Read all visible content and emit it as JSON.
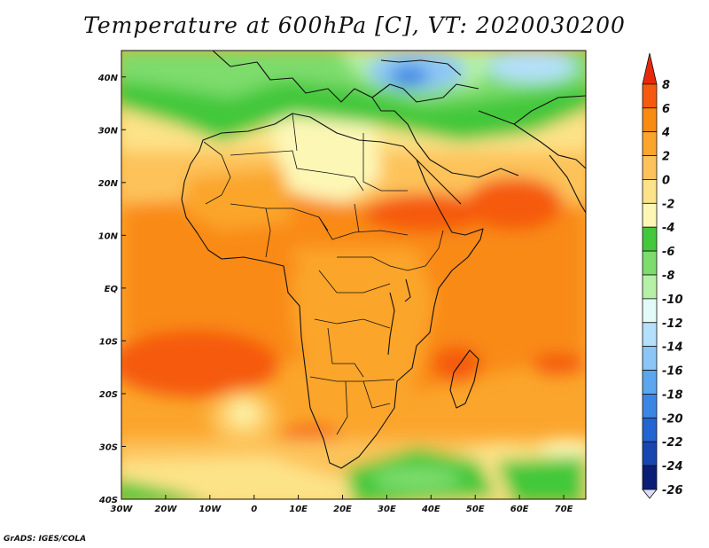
{
  "title": "Temperature at 600hPa [C], VT: 2020030200",
  "footer": "GrADS: IGES/COLA",
  "map": {
    "projection": "latlon",
    "lon_range": [
      -30,
      75
    ],
    "lat_range": [
      -40,
      45
    ],
    "lon_ticks": [
      {
        "value": -30,
        "label": "30W"
      },
      {
        "value": -20,
        "label": "20W"
      },
      {
        "value": -10,
        "label": "10W"
      },
      {
        "value": 0,
        "label": "0"
      },
      {
        "value": 10,
        "label": "10E"
      },
      {
        "value": 20,
        "label": "20E"
      },
      {
        "value": 30,
        "label": "30E"
      },
      {
        "value": 40,
        "label": "40E"
      },
      {
        "value": 50,
        "label": "50E"
      },
      {
        "value": 60,
        "label": "60E"
      },
      {
        "value": 70,
        "label": "70E"
      }
    ],
    "lat_ticks": [
      {
        "value": 40,
        "label": "40N"
      },
      {
        "value": 30,
        "label": "30N"
      },
      {
        "value": 20,
        "label": "20N"
      },
      {
        "value": 10,
        "label": "10N"
      },
      {
        "value": 0,
        "label": "EQ"
      },
      {
        "value": -10,
        "label": "10S"
      },
      {
        "value": -20,
        "label": "20S"
      },
      {
        "value": -30,
        "label": "30S"
      },
      {
        "value": -40,
        "label": "40S"
      }
    ]
  },
  "colorbar": {
    "levels": [
      {
        "label": "8",
        "color": "#e8280a"
      },
      {
        "label": "6",
        "color": "#f55a0f"
      },
      {
        "label": "4",
        "color": "#f98a12"
      },
      {
        "label": "2",
        "color": "#fba52c"
      },
      {
        "label": "0",
        "color": "#fdc35a"
      },
      {
        "label": "-2",
        "color": "#fde388"
      },
      {
        "label": "-4",
        "color": "#fdf7b6"
      },
      {
        "label": "-6",
        "color": "#42c83a"
      },
      {
        "label": "-8",
        "color": "#7ddc6c"
      },
      {
        "label": "-10",
        "color": "#b6f0a6"
      },
      {
        "label": "-12",
        "color": "#e2fbf8"
      },
      {
        "label": "-14",
        "color": "#b4e0fb"
      },
      {
        "label": "-16",
        "color": "#8cc6f6"
      },
      {
        "label": "-18",
        "color": "#5aa6ef"
      },
      {
        "label": "-20",
        "color": "#3a86e4"
      },
      {
        "label": "-22",
        "color": "#2264d2"
      },
      {
        "label": "-24",
        "color": "#1846b0"
      },
      {
        "label": "-26",
        "color": "#0a1e78"
      }
    ],
    "bottom_color": "#dcdcfa"
  }
}
